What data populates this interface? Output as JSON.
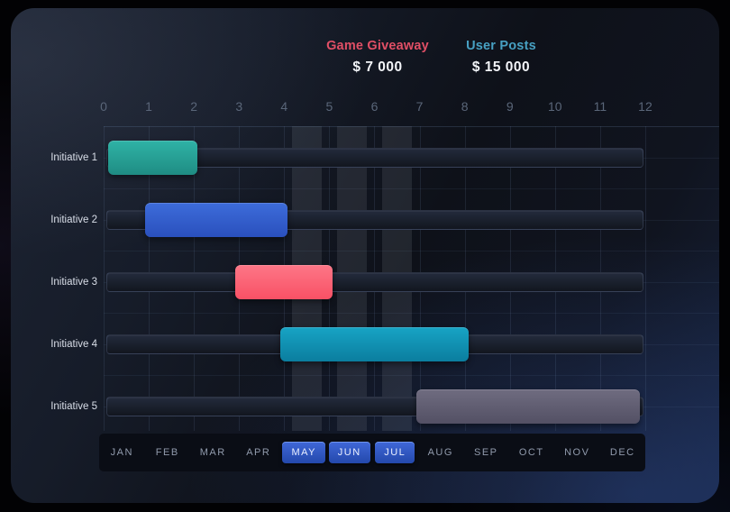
{
  "legend": {
    "items": [
      {
        "label": "Game Giveaway",
        "value": "$ 7 000",
        "label_color": "#e14f66"
      },
      {
        "label": "User Posts",
        "value": "$ 15 000",
        "label_color": "#47a0c2"
      }
    ]
  },
  "chart_data": {
    "type": "bar",
    "subtype": "horizontal-range-gantt",
    "title": "",
    "xlabel": "",
    "ylabel": "",
    "x_range": [
      0,
      12
    ],
    "x_ticks": [
      0,
      1,
      2,
      3,
      4,
      5,
      6,
      7,
      8,
      9,
      10,
      11,
      12
    ],
    "grid": true,
    "categories": [
      "Initiative 1",
      "Initiative 2",
      "Initiative 3",
      "Initiative 4",
      "Initiative 5"
    ],
    "series": [
      {
        "name": "Initiative 1",
        "start": 0,
        "end": 2,
        "color": "#27a094",
        "gradient": [
          "#2fb3a6",
          "#1f8c83"
        ]
      },
      {
        "name": "Initiative 2",
        "start": 1,
        "end": 4,
        "color": "#345ecb",
        "gradient": [
          "#3d6cda",
          "#2a50bd"
        ]
      },
      {
        "name": "Initiative 3",
        "start": 3,
        "end": 5,
        "color": "#fb6072",
        "gradient": [
          "#fd7787",
          "#f95165"
        ]
      },
      {
        "name": "Initiative 4",
        "start": 4,
        "end": 8,
        "color": "#1191b2",
        "gradient": [
          "#17a4c5",
          "#0b7e9f"
        ]
      },
      {
        "name": "Initiative 5",
        "start": 7,
        "end": 12,
        "color": "#615e72",
        "gradient": [
          "#6f6c80",
          "#535064"
        ]
      }
    ],
    "months": [
      "JAN",
      "FEB",
      "MAR",
      "APR",
      "MAY",
      "JUN",
      "JUL",
      "AUG",
      "SEP",
      "OCT",
      "NOV",
      "DEC"
    ],
    "highlighted_months": [
      "MAY",
      "JUN",
      "JUL"
    ],
    "colors": {
      "axis_tick": "#5a6679",
      "row_label": "#d9dee8",
      "grid_line": "rgba(110,135,175,0.16)",
      "grid_line_h": "rgba(110,135,175,0.10)",
      "grid_top_line": "rgba(120,145,185,0.22)",
      "highlight_band": "rgba(205,215,230,0.10)",
      "months_bar_bg": "#0a0d15",
      "month_label": "#919bad",
      "month_active_text": "#e9efff",
      "month_active_gradient": [
        "#4068d8",
        "#2348ab"
      ]
    }
  }
}
